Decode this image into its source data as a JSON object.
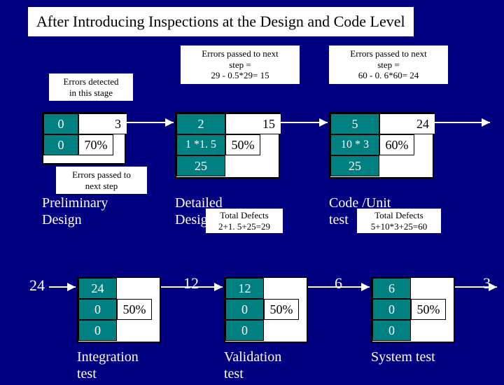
{
  "title": "After Introducing Inspections at the Design and Code Level",
  "callouts": {
    "errors_detected": "Errors detected\nin this stage",
    "errors_passed_next": "Errors passed to\nnext step",
    "passed1": "Errors passed to next\nstep =\n29 - 0.5*29= 15",
    "passed2": "Errors passed to next\nstep =\n60 - 0. 6*60= 24",
    "totdef1": "Total Defects\n2+1. 5+25=29",
    "totdef2": "Total Defects\n5+10*3+25=60"
  },
  "stages": {
    "prelim": {
      "c1": "0",
      "c2": "3",
      "c3": "0",
      "c4": "70%",
      "label": "Preliminary\nDesign"
    },
    "detailed": {
      "c1": "2",
      "c2": "15",
      "c3": "1 *1. 5",
      "c4": "50%",
      "c5": "25",
      "label": "Detailed\nDesign"
    },
    "code": {
      "c1": "5",
      "c2": "24",
      "c3": "10 * 3",
      "c4": "60%",
      "c5": "25",
      "label": "Code /Unit\ntest"
    },
    "integ": {
      "c1": "24",
      "c3": "0",
      "c4": "50%",
      "c5": "0",
      "label": "Integration\ntest",
      "in": "24",
      "out": "12"
    },
    "valid": {
      "c1": "12",
      "c3": "0",
      "c4": "50%",
      "c5": "0",
      "label": "Validation\ntest",
      "out": "6"
    },
    "system": {
      "c1": "6",
      "c3": "0",
      "c4": "50%",
      "c5": "0",
      "label": "System test",
      "out": "3"
    }
  }
}
